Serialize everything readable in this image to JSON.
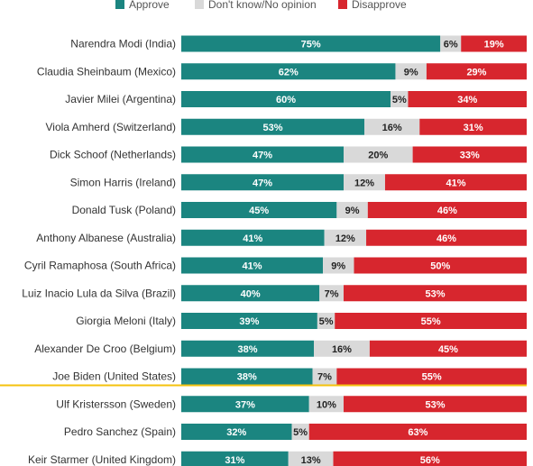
{
  "chart_data": {
    "type": "bar",
    "orientation": "horizontal",
    "stacked": true,
    "legend_position": "top",
    "xlim": [
      0,
      100
    ],
    "series": [
      {
        "name": "Approve",
        "color": "#1b8580"
      },
      {
        "name": "Don't know/No opinion",
        "color": "#d9d9d9"
      },
      {
        "name": "Disapprove",
        "color": "#d7262e"
      }
    ],
    "highlight": {
      "category": "Joe Biden (United States)",
      "color": "#f4c20d"
    },
    "categories": [
      {
        "label": "Narendra Modi (India)",
        "values": [
          75,
          6,
          19
        ]
      },
      {
        "label": "Claudia Sheinbaum (Mexico)",
        "values": [
          62,
          9,
          29
        ]
      },
      {
        "label": "Javier Milei (Argentina)",
        "values": [
          60,
          5,
          34
        ]
      },
      {
        "label": "Viola Amherd (Switzerland)",
        "values": [
          53,
          16,
          31
        ]
      },
      {
        "label": "Dick Schoof (Netherlands)",
        "values": [
          47,
          20,
          33
        ]
      },
      {
        "label": "Simon Harris (Ireland)",
        "values": [
          47,
          12,
          41
        ]
      },
      {
        "label": "Donald Tusk (Poland)",
        "values": [
          45,
          9,
          46
        ]
      },
      {
        "label": "Anthony Albanese (Australia)",
        "values": [
          41,
          12,
          46
        ]
      },
      {
        "label": "Cyril Ramaphosa (South Africa)",
        "values": [
          41,
          9,
          50
        ]
      },
      {
        "label": "Luiz Inacio Lula da Silva (Brazil)",
        "values": [
          40,
          7,
          53
        ]
      },
      {
        "label": "Giorgia Meloni (Italy)",
        "values": [
          39,
          5,
          55
        ]
      },
      {
        "label": "Alexander De Croo (Belgium)",
        "values": [
          38,
          16,
          45
        ]
      },
      {
        "label": "Joe Biden (United States)",
        "values": [
          38,
          7,
          55
        ]
      },
      {
        "label": "Ulf Kristersson (Sweden)",
        "values": [
          37,
          10,
          53
        ]
      },
      {
        "label": "Pedro Sanchez (Spain)",
        "values": [
          32,
          5,
          63
        ]
      },
      {
        "label": "Keir Starmer (United Kingdom)",
        "values": [
          31,
          13,
          56
        ]
      }
    ]
  }
}
